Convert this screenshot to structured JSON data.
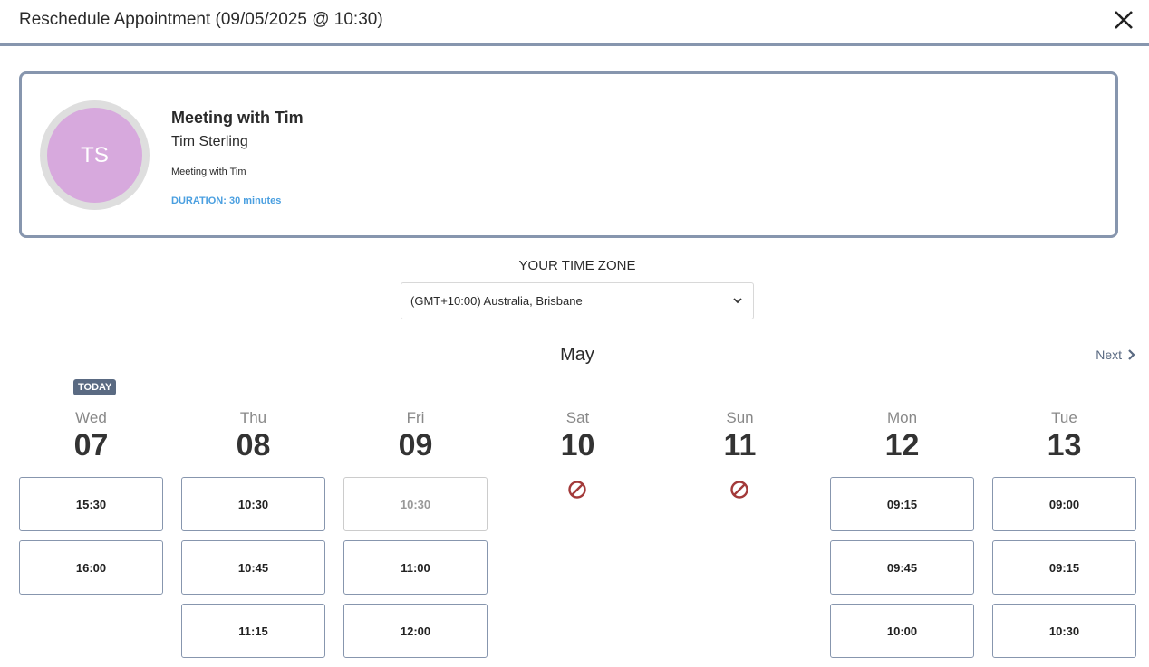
{
  "header": {
    "title": "Reschedule Appointment (09/05/2025 @ 10:30)",
    "close_icon": "close-icon"
  },
  "meeting": {
    "initials": "TS",
    "title": "Meeting with Tim",
    "name": "Tim Sterling",
    "description": "Meeting with Tim",
    "duration": "DURATION: 30 minutes",
    "avatar_color": "#d7a9dd",
    "duration_color": "#4a9fe0"
  },
  "timezone": {
    "label": "YOUR TIME ZONE",
    "value": "(GMT+10:00) Australia, Brisbane"
  },
  "calendar": {
    "month": "May",
    "next_label": "Next",
    "today_badge": "TODAY",
    "days": [
      {
        "dow": "Wed",
        "num": "07",
        "today": true,
        "slots": [
          {
            "t": "15:30"
          },
          {
            "t": "16:00"
          }
        ]
      },
      {
        "dow": "Thu",
        "num": "08",
        "slots": [
          {
            "t": "10:30"
          },
          {
            "t": "10:45"
          },
          {
            "t": "11:15"
          }
        ]
      },
      {
        "dow": "Fri",
        "num": "09",
        "slots": [
          {
            "t": "10:30",
            "disabled": true
          },
          {
            "t": "11:00"
          },
          {
            "t": "12:00"
          }
        ]
      },
      {
        "dow": "Sat",
        "num": "10",
        "unavailable": true,
        "slots": []
      },
      {
        "dow": "Sun",
        "num": "11",
        "unavailable": true,
        "slots": []
      },
      {
        "dow": "Mon",
        "num": "12",
        "slots": [
          {
            "t": "09:15"
          },
          {
            "t": "09:45"
          },
          {
            "t": "10:00"
          }
        ]
      },
      {
        "dow": "Tue",
        "num": "13",
        "slots": [
          {
            "t": "09:00"
          },
          {
            "t": "09:15"
          },
          {
            "t": "10:30"
          }
        ]
      }
    ]
  }
}
